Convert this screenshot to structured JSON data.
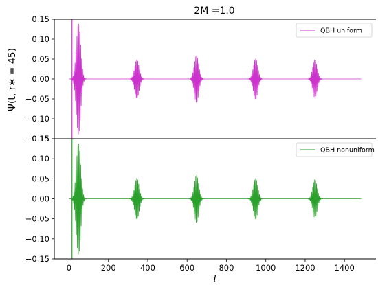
{
  "chart_data": [
    {
      "type": "line",
      "title": "2M =1.0",
      "ylabel": "Ψ(t, r∗ = 45)",
      "xlabel": "",
      "xlim": [
        -75,
        1560
      ],
      "ylim": [
        -0.15,
        0.15
      ],
      "y_ticks": [
        -0.15,
        -0.1,
        -0.05,
        0.0,
        0.05,
        0.1,
        0.15
      ],
      "y_tick_labels": [
        "−0.15",
        "−0.10",
        "−0.05",
        "0.00",
        "0.05",
        "0.10",
        "0.15"
      ],
      "legend_position": "top-right",
      "grid": false,
      "series": [
        {
          "name": "QBH uniform",
          "color": "#cc33cc",
          "t_range": [
            0,
            1485
          ],
          "initial_transient": {
            "t": 15,
            "min": -0.15,
            "max": 0.15
          },
          "bursts": [
            {
              "center": 48,
              "amplitude": 0.14
            },
            {
              "center": 345,
              "amplitude": 0.055
            },
            {
              "center": 648,
              "amplitude": 0.06
            },
            {
              "center": 948,
              "amplitude": 0.055
            },
            {
              "center": 1250,
              "amplitude": 0.05
            }
          ]
        }
      ]
    },
    {
      "type": "line",
      "title": "",
      "ylabel": "",
      "xlabel": "t",
      "xlim": [
        -75,
        1560
      ],
      "ylim": [
        -0.15,
        0.15
      ],
      "x_ticks": [
        0,
        200,
        400,
        600,
        800,
        1000,
        1200,
        1400
      ],
      "x_tick_labels": [
        "0",
        "200",
        "400",
        "600",
        "800",
        "1000",
        "1200",
        "1400"
      ],
      "y_ticks": [
        -0.15,
        -0.1,
        -0.05,
        0.0,
        0.05,
        0.1,
        0.15
      ],
      "y_tick_labels": [
        "−0.15",
        "−0.10",
        "−0.05",
        "0.00",
        "0.05",
        "0.10",
        "0.15"
      ],
      "legend_position": "top-right",
      "grid": false,
      "series": [
        {
          "name": "QBH nonuniform",
          "color": "#2ca02c",
          "t_range": [
            0,
            1485
          ],
          "initial_transient": {
            "t": 15,
            "min": -0.15,
            "max": 0.15
          },
          "bursts": [
            {
              "center": 48,
              "amplitude": 0.14
            },
            {
              "center": 345,
              "amplitude": 0.058
            },
            {
              "center": 648,
              "amplitude": 0.06
            },
            {
              "center": 948,
              "amplitude": 0.055
            },
            {
              "center": 1250,
              "amplitude": 0.05
            }
          ]
        }
      ]
    }
  ]
}
